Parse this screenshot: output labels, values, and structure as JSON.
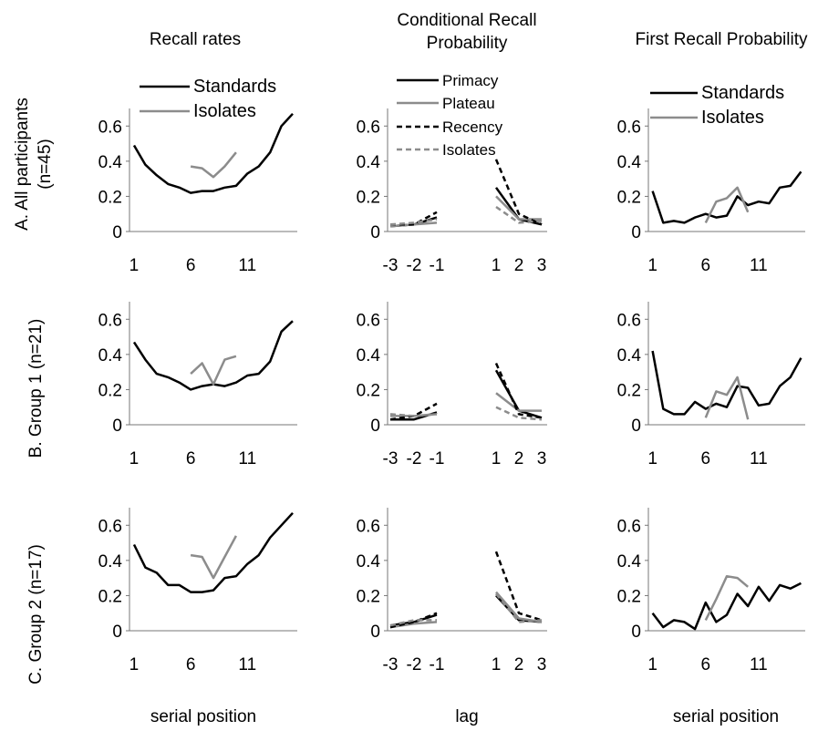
{
  "column_titles": [
    {
      "lines": [
        "Recall rates"
      ]
    },
    {
      "lines": [
        "Conditional Recall",
        "Probability"
      ]
    },
    {
      "lines": [
        "First Recall Probability"
      ]
    }
  ],
  "row_labels": [
    {
      "lines": [
        "A. All participants",
        "(n=45)"
      ]
    },
    {
      "lines": [
        "B. Group 1 (n=21)"
      ]
    },
    {
      "lines": [
        "C. Group 2 (n=17)"
      ]
    }
  ],
  "xlabels": [
    "serial position",
    "lag",
    "serial position"
  ],
  "legends": [
    {
      "items": [
        {
          "name": "Standards",
          "color": "#000000",
          "dash": false
        },
        {
          "name": "Isolates",
          "color": "#8c8c8c",
          "dash": false
        }
      ]
    },
    {
      "items": [
        {
          "name": "Primacy",
          "color": "#000000",
          "dash": false
        },
        {
          "name": "Plateau",
          "color": "#8c8c8c",
          "dash": false
        },
        {
          "name": "Recency",
          "color": "#000000",
          "dash": true
        },
        {
          "name": "Isolates",
          "color": "#8c8c8c",
          "dash": true
        }
      ]
    },
    {
      "items": [
        {
          "name": "Standards",
          "color": "#000000",
          "dash": false
        },
        {
          "name": "Isolates",
          "color": "#8c8c8c",
          "dash": false
        }
      ]
    }
  ],
  "chart_data": [
    {
      "type": "line",
      "panel": "A-recall",
      "ylim": [
        0,
        0.7
      ],
      "yticks": [
        "0",
        "0.2",
        "0.4",
        "0.6"
      ],
      "xticks": [
        "1",
        "6",
        "11"
      ],
      "x": [
        1,
        2,
        3,
        4,
        5,
        6,
        7,
        8,
        9,
        10,
        11,
        12,
        13,
        14,
        15
      ],
      "series": [
        {
          "name": "Standards",
          "color": "#000000",
          "x": [
            1,
            2,
            3,
            4,
            5,
            6,
            7,
            8,
            9,
            10,
            11,
            12,
            13,
            14,
            15
          ],
          "values": [
            0.49,
            0.38,
            0.32,
            0.27,
            0.25,
            0.22,
            0.23,
            0.23,
            0.25,
            0.26,
            0.33,
            0.37,
            0.45,
            0.6,
            0.67
          ]
        },
        {
          "name": "Isolates",
          "color": "#8c8c8c",
          "x": [
            6,
            7,
            8,
            9,
            10
          ],
          "values": [
            0.37,
            0.36,
            0.31,
            0.37,
            0.45
          ]
        }
      ]
    },
    {
      "type": "line",
      "panel": "A-crp",
      "ylim": [
        0,
        0.7
      ],
      "yticks": [
        "0",
        "0.2",
        "0.4",
        "0.6"
      ],
      "xticks": [
        "-3",
        "-2",
        "-1",
        "1",
        "2",
        "3"
      ],
      "series": [
        {
          "name": "Primacy",
          "color": "#000000",
          "dash": false,
          "segments": [
            [
              [
                -3,
                0.03
              ],
              [
                -2,
                0.04
              ],
              [
                -1,
                0.08
              ]
            ],
            [
              [
                1,
                0.25
              ],
              [
                2,
                0.07
              ],
              [
                3,
                0.04
              ]
            ]
          ]
        },
        {
          "name": "Plateau",
          "color": "#8c8c8c",
          "dash": false,
          "segments": [
            [
              [
                -3,
                0.03
              ],
              [
                -2,
                0.04
              ],
              [
                -1,
                0.05
              ]
            ],
            [
              [
                1,
                0.2
              ],
              [
                2,
                0.07
              ],
              [
                3,
                0.07
              ]
            ]
          ]
        },
        {
          "name": "Recency",
          "color": "#000000",
          "dash": true,
          "segments": [
            [
              [
                -3,
                0.04
              ],
              [
                -2,
                0.04
              ],
              [
                -1,
                0.11
              ]
            ],
            [
              [
                1,
                0.41
              ],
              [
                2,
                0.1
              ],
              [
                3,
                0.04
              ]
            ]
          ]
        },
        {
          "name": "Isolates",
          "color": "#8c8c8c",
          "dash": true,
          "segments": [
            [
              [
                -3,
                0.04
              ],
              [
                -2,
                0.05
              ],
              [
                -1,
                0.07
              ]
            ],
            [
              [
                1,
                0.14
              ],
              [
                2,
                0.05
              ],
              [
                3,
                0.06
              ]
            ]
          ]
        }
      ]
    },
    {
      "type": "line",
      "panel": "A-first",
      "ylim": [
        0,
        0.7
      ],
      "yticks": [
        "0",
        "0.2",
        "0.4",
        "0.6"
      ],
      "xticks": [
        "1",
        "6",
        "11"
      ],
      "series": [
        {
          "name": "Standards",
          "color": "#000000",
          "x": [
            1,
            2,
            3,
            4,
            5,
            6,
            7,
            8,
            9,
            10,
            11,
            12,
            13,
            14,
            15
          ],
          "values": [
            0.23,
            0.05,
            0.06,
            0.05,
            0.08,
            0.1,
            0.08,
            0.09,
            0.2,
            0.15,
            0.17,
            0.16,
            0.25,
            0.26,
            0.34
          ]
        },
        {
          "name": "Isolates",
          "color": "#8c8c8c",
          "x": [
            6,
            7,
            8,
            9,
            10
          ],
          "values": [
            0.05,
            0.17,
            0.19,
            0.25,
            0.11
          ]
        }
      ]
    },
    {
      "type": "line",
      "panel": "B-recall",
      "ylim": [
        0,
        0.7
      ],
      "yticks": [
        "0",
        "0.2",
        "0.4",
        "0.6"
      ],
      "xticks": [
        "1",
        "6",
        "11"
      ],
      "series": [
        {
          "name": "Standards",
          "color": "#000000",
          "x": [
            1,
            2,
            3,
            4,
            5,
            6,
            7,
            8,
            9,
            10,
            11,
            12,
            13,
            14,
            15
          ],
          "values": [
            0.47,
            0.37,
            0.29,
            0.27,
            0.24,
            0.2,
            0.22,
            0.23,
            0.22,
            0.24,
            0.28,
            0.29,
            0.36,
            0.53,
            0.59
          ]
        },
        {
          "name": "Isolates",
          "color": "#8c8c8c",
          "x": [
            6,
            7,
            8,
            9,
            10
          ],
          "values": [
            0.29,
            0.35,
            0.23,
            0.37,
            0.39
          ]
        }
      ]
    },
    {
      "type": "line",
      "panel": "B-crp",
      "ylim": [
        0,
        0.7
      ],
      "yticks": [
        "0",
        "0.2",
        "0.4",
        "0.6"
      ],
      "xticks": [
        "-3",
        "-2",
        "-1",
        "1",
        "2",
        "3"
      ],
      "series": [
        {
          "name": "Primacy",
          "color": "#000000",
          "dash": false,
          "segments": [
            [
              [
                -3,
                0.03
              ],
              [
                -2,
                0.03
              ],
              [
                -1,
                0.07
              ]
            ],
            [
              [
                1,
                0.31
              ],
              [
                2,
                0.08
              ],
              [
                3,
                0.04
              ]
            ]
          ]
        },
        {
          "name": "Plateau",
          "color": "#8c8c8c",
          "dash": false,
          "segments": [
            [
              [
                -3,
                0.05
              ],
              [
                -2,
                0.05
              ],
              [
                -1,
                0.06
              ]
            ],
            [
              [
                1,
                0.18
              ],
              [
                2,
                0.08
              ],
              [
                3,
                0.08
              ]
            ]
          ]
        },
        {
          "name": "Recency",
          "color": "#000000",
          "dash": true,
          "segments": [
            [
              [
                -3,
                0.03
              ],
              [
                -2,
                0.05
              ],
              [
                -1,
                0.12
              ]
            ],
            [
              [
                1,
                0.35
              ],
              [
                2,
                0.06
              ],
              [
                3,
                0.04
              ]
            ]
          ]
        },
        {
          "name": "Isolates",
          "color": "#8c8c8c",
          "dash": true,
          "segments": [
            [
              [
                -3,
                0.06
              ],
              [
                -2,
                0.05
              ],
              [
                -1,
                0.06
              ]
            ],
            [
              [
                1,
                0.1
              ],
              [
                2,
                0.04
              ],
              [
                3,
                0.03
              ]
            ]
          ]
        }
      ]
    },
    {
      "type": "line",
      "panel": "B-first",
      "ylim": [
        0,
        0.7
      ],
      "yticks": [
        "0",
        "0.2",
        "0.4",
        "0.6"
      ],
      "xticks": [
        "1",
        "6",
        "11"
      ],
      "series": [
        {
          "name": "Standards",
          "color": "#000000",
          "x": [
            1,
            2,
            3,
            4,
            5,
            6,
            7,
            8,
            9,
            10,
            11,
            12,
            13,
            14,
            15
          ],
          "values": [
            0.42,
            0.09,
            0.06,
            0.06,
            0.13,
            0.09,
            0.12,
            0.1,
            0.22,
            0.21,
            0.11,
            0.12,
            0.22,
            0.27,
            0.38
          ]
        },
        {
          "name": "Isolates",
          "color": "#8c8c8c",
          "x": [
            6,
            7,
            8,
            9,
            10
          ],
          "values": [
            0.04,
            0.19,
            0.17,
            0.27,
            0.03
          ]
        }
      ]
    },
    {
      "type": "line",
      "panel": "C-recall",
      "ylim": [
        0,
        0.7
      ],
      "yticks": [
        "0",
        "0.2",
        "0.4",
        "0.6"
      ],
      "xticks": [
        "1",
        "6",
        "11"
      ],
      "series": [
        {
          "name": "Standards",
          "color": "#000000",
          "x": [
            1,
            2,
            3,
            4,
            5,
            6,
            7,
            8,
            9,
            10,
            11,
            12,
            13,
            14,
            15
          ],
          "values": [
            0.49,
            0.36,
            0.33,
            0.26,
            0.26,
            0.22,
            0.22,
            0.23,
            0.3,
            0.31,
            0.38,
            0.43,
            0.53,
            0.6,
            0.67
          ]
        },
        {
          "name": "Isolates",
          "color": "#8c8c8c",
          "x": [
            6,
            7,
            8,
            9,
            10
          ],
          "values": [
            0.43,
            0.42,
            0.3,
            0.42,
            0.54
          ]
        }
      ]
    },
    {
      "type": "line",
      "panel": "C-crp",
      "ylim": [
        0,
        0.7
      ],
      "yticks": [
        "0",
        "0.2",
        "0.4",
        "0.6"
      ],
      "xticks": [
        "-3",
        "-2",
        "-1",
        "1",
        "2",
        "3"
      ],
      "series": [
        {
          "name": "Primacy",
          "color": "#000000",
          "dash": false,
          "segments": [
            [
              [
                -3,
                0.03
              ],
              [
                -2,
                0.05
              ],
              [
                -1,
                0.09
              ]
            ],
            [
              [
                1,
                0.2
              ],
              [
                2,
                0.06
              ],
              [
                3,
                0.05
              ]
            ]
          ]
        },
        {
          "name": "Plateau",
          "color": "#8c8c8c",
          "dash": false,
          "segments": [
            [
              [
                -3,
                0.02
              ],
              [
                -2,
                0.04
              ],
              [
                -1,
                0.05
              ]
            ],
            [
              [
                1,
                0.22
              ],
              [
                2,
                0.07
              ],
              [
                3,
                0.05
              ]
            ]
          ]
        },
        {
          "name": "Recency",
          "color": "#000000",
          "dash": true,
          "segments": [
            [
              [
                -3,
                0.02
              ],
              [
                -2,
                0.05
              ],
              [
                -1,
                0.1
              ]
            ],
            [
              [
                1,
                0.45
              ],
              [
                2,
                0.1
              ],
              [
                3,
                0.06
              ]
            ]
          ]
        },
        {
          "name": "Isolates",
          "color": "#8c8c8c",
          "dash": true,
          "segments": [
            [
              [
                -3,
                0.03
              ],
              [
                -2,
                0.06
              ],
              [
                -1,
                0.06
              ]
            ],
            [
              [
                1,
                0.21
              ],
              [
                2,
                0.05
              ],
              [
                3,
                0.06
              ]
            ]
          ]
        }
      ]
    },
    {
      "type": "line",
      "panel": "C-first",
      "ylim": [
        0,
        0.7
      ],
      "yticks": [
        "0",
        "0.2",
        "0.4",
        "0.6"
      ],
      "xticks": [
        "1",
        "6",
        "11"
      ],
      "series": [
        {
          "name": "Standards",
          "color": "#000000",
          "x": [
            1,
            2,
            3,
            4,
            5,
            6,
            7,
            8,
            9,
            10,
            11,
            12,
            13,
            14,
            15
          ],
          "values": [
            0.1,
            0.02,
            0.06,
            0.05,
            0.01,
            0.16,
            0.05,
            0.09,
            0.21,
            0.14,
            0.25,
            0.17,
            0.26,
            0.24,
            0.27
          ]
        },
        {
          "name": "Isolates",
          "color": "#8c8c8c",
          "x": [
            6,
            7,
            8,
            9,
            10
          ],
          "values": [
            0.06,
            0.18,
            0.31,
            0.3,
            0.25
          ]
        }
      ]
    }
  ]
}
